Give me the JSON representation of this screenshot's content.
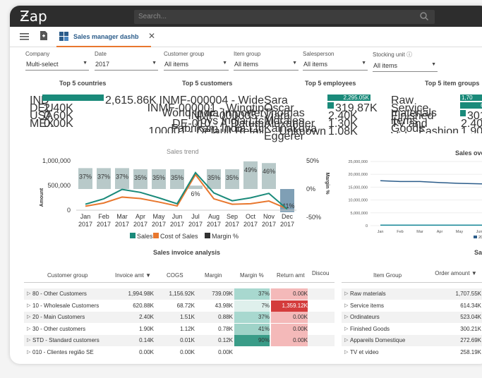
{
  "app": {
    "logo": "Ƶap",
    "search_placeholder": "Search..."
  },
  "tab": {
    "label": "Sales manager dashb",
    "close": "✕"
  },
  "filters": [
    {
      "label": "Company",
      "value": "Multi-select"
    },
    {
      "label": "Date",
      "value": "2017"
    },
    {
      "label": "Customer group",
      "value": "All items"
    },
    {
      "label": "Item group",
      "value": "All items"
    },
    {
      "label": "Salesperson",
      "value": "All items"
    },
    {
      "label": "Stocking unit ⓘ",
      "value": "All items"
    }
  ],
  "top_countries": {
    "title": "Top 5 countries",
    "rows": [
      {
        "name": "IND",
        "value": "2,615.86K",
        "fraction": 1.0
      },
      {
        "name": "DEU",
        "value": "2.40K",
        "fraction": 0.001
      },
      {
        "name": "USA",
        "value": "0.60K",
        "fraction": 0
      },
      {
        "name": "MEX",
        "value": "0.00K",
        "fraction": 0
      }
    ]
  },
  "top_customers": {
    "title": "Top 5 customers",
    "rows": [
      "INMF-000004 - Wide World India Importer",
      "INMF-000001 - Wingtip Toys India Ltc",
      "INMF-000005 - Fabrikam India Ltc",
      "DE-010 - A.Datum Corporatio",
      "100001 - Default Retail Custome"
    ]
  },
  "top_employees": {
    "title": "Top 5 employees",
    "rows": [
      {
        "name": "Sara Thomas",
        "value": "2,295.05K",
        "fraction": 1.0
      },
      {
        "name": "Oscar Morales",
        "value": "319.87K",
        "fraction": 0.14
      },
      {
        "name": "Viara Kalnakova",
        "value": "2.40K",
        "fraction": 0
      },
      {
        "name": "Alexander Eggerer",
        "value": "1.30K",
        "fraction": 0
      },
      {
        "name": "Unknown",
        "value": "1.08K",
        "fraction": 0
      }
    ]
  },
  "top_item_groups": {
    "title": "Top 5 item groups",
    "rows": [
      {
        "name": "Raw materials",
        "value": "1,70",
        "fraction": 1.0
      },
      {
        "name": "Service items",
        "value": "60",
        "fraction": 0.36
      },
      {
        "name": "Finished Goods",
        "value": "301.",
        "fraction": 0.18
      },
      {
        "name": "TV and Video Products",
        "value": "2.40K",
        "fraction": 0
      },
      {
        "name": "Fashion",
        "value": "1.90K",
        "fraction": 0
      }
    ]
  },
  "sales_trend": {
    "title": "Sales trend",
    "y_left_label": "Amount",
    "y_right_label": "Margin %",
    "y_left_ticks": [
      "1,000,000",
      "500,000",
      "0"
    ],
    "y_right_ticks": [
      "50%",
      "0%",
      "-50%"
    ],
    "legend": [
      "Sales",
      "Cost of Sales",
      "Margin %"
    ],
    "colors": {
      "sales": "#1a8a7a",
      "cogs": "#e8772e",
      "margin": "#b8c9c9",
      "margin_neg": "#7f9fb5"
    }
  },
  "chart_data": {
    "type": "line",
    "title": "Sales trend",
    "xlabel": "",
    "ylabel": "Amount",
    "ylim": [
      0,
      1000000
    ],
    "y2lim": [
      -50,
      50
    ],
    "categories": [
      "Jan 2017",
      "Feb 2017",
      "Mar 2017",
      "Apr 2017",
      "May 2017",
      "Jun 2017",
      "Jul 2017",
      "Aug 2017",
      "Sep 2017",
      "Oct 2017",
      "Nov 2017",
      "Dec 2017"
    ],
    "series": [
      {
        "name": "Sales",
        "values": [
          120000,
          230000,
          420000,
          360000,
          250000,
          130000,
          760000,
          350000,
          190000,
          250000,
          340000,
          20000
        ]
      },
      {
        "name": "Cost of Sales",
        "values": [
          80000,
          145000,
          265000,
          235000,
          165000,
          85000,
          720000,
          230000,
          120000,
          130000,
          185000,
          28000
        ]
      },
      {
        "name": "Margin %",
        "values": [
          37,
          37,
          37,
          35,
          35,
          35,
          6,
          35,
          35,
          49,
          46,
          -41
        ]
      }
    ],
    "labels": [
      "37%",
      "37%",
      "37%",
      "35%",
      "35%",
      "35%",
      "6%",
      "35%",
      "35%",
      "49%",
      "46%",
      "-41%"
    ],
    "months": [
      "Jan",
      "Feb",
      "Mar",
      "Apr",
      "May",
      "Jun",
      "Jul",
      "Aug",
      "Sep",
      "Oct",
      "Nov",
      "Dec"
    ],
    "year": "2017"
  },
  "sales_over_time": {
    "title": "Sales over ti",
    "y_ticks": [
      "25,000,000",
      "20,000,000",
      "15,000,000",
      "10,000,000",
      "5,000,000",
      "0"
    ],
    "x_ticks": [
      "Jan",
      "Feb",
      "Mar",
      "Apr",
      "May",
      "Jun"
    ],
    "legend": "2016 (",
    "series_a": [
      17500000,
      17200000,
      17200000,
      16800000,
      16500000,
      16300000,
      16100000
    ],
    "series_b": [
      200000,
      200000,
      200000,
      200000,
      200000,
      200000,
      200000
    ]
  },
  "sales_invoice": {
    "title": "Sales invoice analysis",
    "columns": [
      "Customer group",
      "Invoice amt ▼",
      "COGS",
      "Margin",
      "Margin %",
      "Return amt",
      "Discou"
    ],
    "rows": [
      {
        "group": "80 - Other Customers",
        "invoice": "1,994.98K",
        "cogs": "1,156.92K",
        "margin": "739.09K",
        "margin_pct": "37%",
        "return": "0.00K",
        "mpct_color": "#a8d8cf"
      },
      {
        "group": "10 - Wholesale Customers",
        "invoice": "620.88K",
        "cogs": "68.72K",
        "margin": "43.98K",
        "margin_pct": "7%",
        "return": "1,359.12K",
        "mpct_color": "#dff0ec"
      },
      {
        "group": "20 - Main Customers",
        "invoice": "2.40K",
        "cogs": "1.51K",
        "margin": "0.88K",
        "margin_pct": "37%",
        "return": "0.00K",
        "mpct_color": "#a8d8cf"
      },
      {
        "group": "30 - Other customers",
        "invoice": "1.90K",
        "cogs": "1.12K",
        "margin": "0.78K",
        "margin_pct": "41%",
        "return": "0.00K",
        "mpct_color": "#9fd3c8"
      },
      {
        "group": "STD - Standard customers",
        "invoice": "0.14K",
        "cogs": "0.01K",
        "margin": "0.12K",
        "margin_pct": "90%",
        "return": "0.00K",
        "mpct_color": "#3a9c88"
      },
      {
        "group": "010 - Clientes região SE",
        "invoice": "0.00K",
        "cogs": "0.00K",
        "margin": "0.00K",
        "margin_pct": "",
        "return": "",
        "mpct_color": "#ffffff"
      }
    ]
  },
  "item_table": {
    "title": "Sal",
    "columns": [
      "Item Group",
      "Order amount ▼"
    ],
    "rows": [
      {
        "group": "Raw materials",
        "amount": "1,707.55K"
      },
      {
        "group": "Service items",
        "amount": "614.34K"
      },
      {
        "group": "Ordinateurs",
        "amount": "523.04K"
      },
      {
        "group": "Finished Goods",
        "amount": "300.21K"
      },
      {
        "group": "Appareils Domestique",
        "amount": "272.69K"
      },
      {
        "group": "TV et video",
        "amount": "258.19K"
      }
    ]
  }
}
